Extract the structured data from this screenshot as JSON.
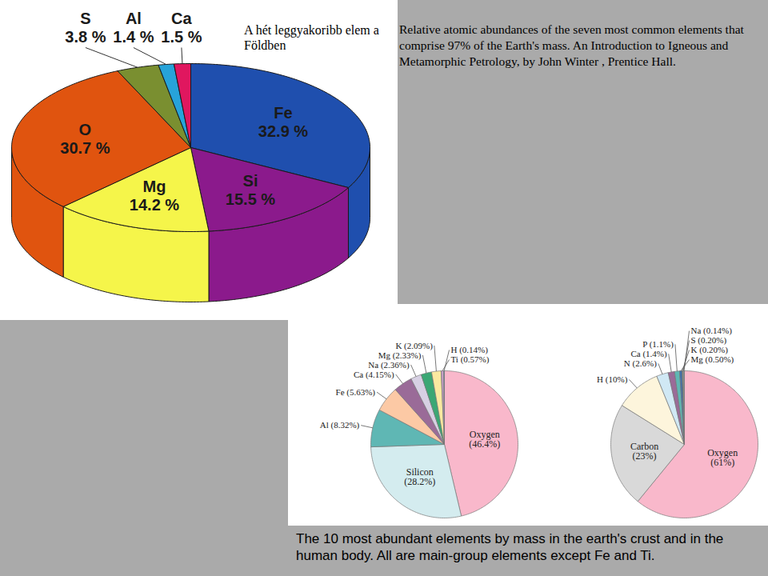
{
  "chart_data": [
    {
      "type": "pie",
      "title": "A hét leggyakoribb elem a Földben",
      "annotations": [
        "Relative atomic abundances of the seven most common elements that comprise 97% of the Earth's mass. An Introduction to Igneous and Metamorphic Petrology, by John Winter , Prentice Hall."
      ],
      "categories": [
        "Fe",
        "Si",
        "Mg",
        "O",
        "S",
        "Al",
        "Ca"
      ],
      "values": [
        32.9,
        15.5,
        14.2,
        30.7,
        3.8,
        1.4,
        1.5
      ],
      "value_labels": [
        "32.9 %",
        "15.5 %",
        "14.2 %",
        "30.7 %",
        "3.8 %",
        "1.4 %",
        "1.5 %"
      ],
      "colors": [
        "#1f4fae",
        "#8b1a8c",
        "#f5f54a",
        "#e0540f",
        "#7a8f30",
        "#27a3d9",
        "#e0175f"
      ],
      "data_labels": true
    },
    {
      "type": "pie",
      "categories": [
        "Oxygen",
        "Silicon",
        "Al",
        "Fe",
        "Ca",
        "Na",
        "Mg",
        "K",
        "Ti",
        "H"
      ],
      "values": [
        46.4,
        28.2,
        8.32,
        5.63,
        4.15,
        2.36,
        2.33,
        2.09,
        0.57,
        0.14
      ],
      "value_labels": [
        "(46.4%)",
        "(28.2%)",
        "(8.32%)",
        "(5.63%)",
        "(4.15%)",
        "(2.36%)",
        "(2.33%)",
        "(2.09%)",
        "(0.57%)",
        "(0.14%)"
      ],
      "colors": [
        "#f9b8cb",
        "#d4ecef",
        "#5fb7b4",
        "#fcc9a5",
        "#9a6b98",
        "#d7d0e3",
        "#3ba774",
        "#fae9a0",
        "#c7a0c7",
        "#6fa3c9"
      ],
      "data_labels": true
    },
    {
      "type": "pie",
      "categories": [
        "Oxygen",
        "Carbon",
        "H",
        "N",
        "Ca",
        "P",
        "Mg",
        "K",
        "S",
        "Na"
      ],
      "values": [
        61,
        23,
        10,
        2.6,
        1.4,
        1.1,
        0.5,
        0.2,
        0.2,
        0.14
      ],
      "value_labels": [
        "(61%)",
        "(23%)",
        "(10%)",
        "(2.6%)",
        "(1.4%)",
        "(1.1%)",
        "(0.50%)",
        "(0.20%)",
        "(0.20%)",
        "(0.14%)"
      ],
      "colors": [
        "#f9b8cb",
        "#d9d9d9",
        "#fdf5dc",
        "#d0e8f4",
        "#9a6b98",
        "#5fb7b4",
        "#3a6fb0",
        "#1f5a80",
        "#fae9a0",
        "#6fa3c9"
      ],
      "data_labels": true
    }
  ],
  "caption": "The 10 most abundant elements by mass in the earth's crust and in the human body. All are main-group elements except Fe and Ti."
}
